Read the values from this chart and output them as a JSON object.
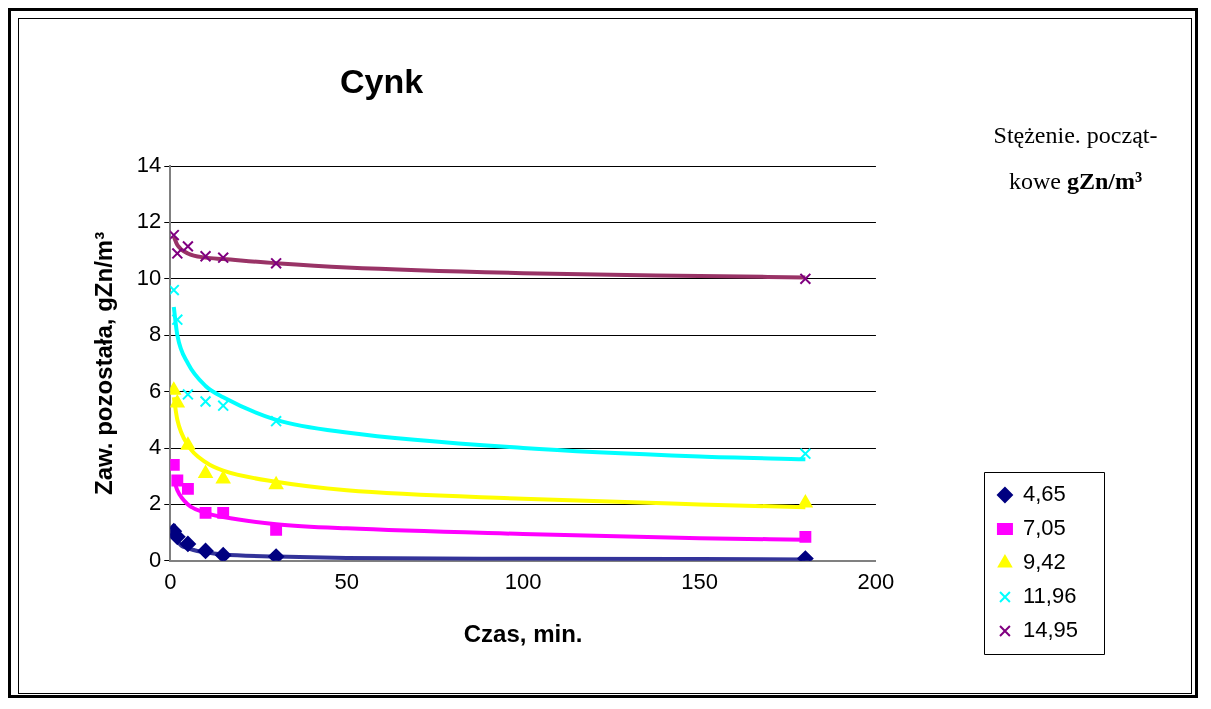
{
  "chart_data": {
    "type": "scatter",
    "title": "Cynk",
    "xlabel": "Czas, min.",
    "ylabel": "Zaw. pozostała, gZn/m³",
    "legend_title": "Stężenie. począt-kowe gZn/m³",
    "x": [
      1,
      2,
      5,
      10,
      15,
      30,
      180
    ],
    "xlim": [
      0,
      200
    ],
    "xticks": [
      0,
      50,
      100,
      150,
      200
    ],
    "ylim": [
      0,
      14
    ],
    "yticks": [
      0,
      2,
      4,
      6,
      8,
      10,
      12,
      14
    ],
    "grid": "y",
    "legend": "right",
    "series": [
      {
        "name": "4,65",
        "color": "#000080",
        "marker": "diamond",
        "values": [
          1.05,
          0.85,
          0.6,
          0.35,
          0.2,
          0.15,
          0.08
        ]
      },
      {
        "name": "7,05",
        "color": "#ff00ff",
        "marker": "square",
        "values": [
          3.4,
          2.85,
          2.55,
          1.7,
          1.7,
          1.1,
          0.85
        ]
      },
      {
        "name": "9,42",
        "color": "#ffff00",
        "marker": "triangle",
        "values": [
          6.05,
          5.6,
          4.1,
          3.1,
          2.9,
          2.7,
          2.05
        ]
      },
      {
        "name": "11,96",
        "color": "#00ffff",
        "marker": "cross",
        "values": [
          9.6,
          8.55,
          5.9,
          5.65,
          5.5,
          4.95,
          3.8
        ]
      },
      {
        "name": "14,95",
        "color": "#800080",
        "marker": "cross",
        "values": [
          11.55,
          10.9,
          11.15,
          10.8,
          10.75,
          10.55,
          10.0
        ]
      },
      {
        "type": "line",
        "color": "#333399",
        "marker": "none",
        "x": [
          1,
          2,
          5,
          10,
          15,
          30,
          50,
          100,
          150,
          180
        ],
        "values": [
          1.3,
          0.75,
          0.45,
          0.3,
          0.22,
          0.15,
          0.1,
          0.07,
          0.06,
          0.05
        ]
      },
      {
        "type": "line",
        "color": "#ff00ff",
        "marker": "none",
        "x": [
          1,
          2,
          5,
          10,
          15,
          30,
          50,
          100,
          150,
          180
        ],
        "values": [
          2.9,
          2.5,
          2.0,
          1.7,
          1.55,
          1.3,
          1.15,
          0.95,
          0.8,
          0.75
        ]
      },
      {
        "type": "line",
        "color": "#ffff00",
        "marker": "none",
        "x": [
          1,
          2,
          5,
          10,
          15,
          30,
          50,
          100,
          150,
          180
        ],
        "values": [
          5.8,
          5.0,
          4.1,
          3.5,
          3.2,
          2.8,
          2.5,
          2.2,
          2.0,
          1.9
        ]
      },
      {
        "type": "line",
        "color": "#00ffff",
        "marker": "none",
        "x": [
          1,
          2,
          5,
          10,
          15,
          30,
          50,
          100,
          150,
          180
        ],
        "values": [
          9.0,
          8.0,
          7.0,
          6.2,
          5.8,
          5.0,
          4.55,
          4.0,
          3.7,
          3.6
        ]
      },
      {
        "type": "line",
        "color": "#993366",
        "marker": "none",
        "x": [
          1,
          2,
          5,
          10,
          15,
          30,
          50,
          100,
          150,
          180
        ],
        "values": [
          11.5,
          11.2,
          10.9,
          10.75,
          10.7,
          10.55,
          10.4,
          10.2,
          10.1,
          10.05
        ]
      }
    ]
  }
}
